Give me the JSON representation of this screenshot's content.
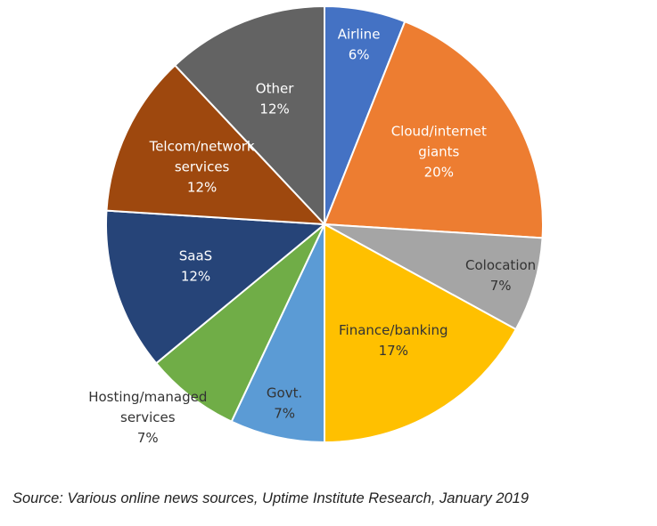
{
  "chart_data": {
    "type": "pie",
    "title": "",
    "slices": [
      {
        "lines": [
          "Airline",
          "6%"
        ],
        "value": 6,
        "color": "#4472c4",
        "label_color": "#ffffff",
        "label_outside": false
      },
      {
        "lines": [
          "Cloud/internet",
          "giants",
          "20%"
        ],
        "value": 20,
        "color": "#ed7d31",
        "label_color": "#ffffff",
        "label_outside": false
      },
      {
        "lines": [
          "Colocation",
          "7%"
        ],
        "value": 7,
        "color": "#a5a5a5",
        "label_color": "#333333",
        "label_outside": false
      },
      {
        "lines": [
          "Finance/banking",
          "17%"
        ],
        "value": 17,
        "color": "#ffc000",
        "label_color": "#333333",
        "label_outside": false
      },
      {
        "lines": [
          "Govt.",
          "7%"
        ],
        "value": 7,
        "color": "#5b9bd5",
        "label_color": "#333333",
        "label_outside": false
      },
      {
        "lines": [
          "Hosting/managed",
          "services",
          "7%"
        ],
        "value": 7,
        "color": "#70ad47",
        "label_color": "#333333",
        "label_outside": true
      },
      {
        "lines": [
          "SaaS",
          "12%"
        ],
        "value": 12,
        "color": "#264478",
        "label_color": "#ffffff",
        "label_outside": false
      },
      {
        "lines": [
          "Telcom/network",
          "services",
          "12%"
        ],
        "value": 12,
        "color": "#9e480e",
        "label_color": "#ffffff",
        "label_outside": false
      },
      {
        "lines": [
          "Other",
          "12%"
        ],
        "value": 12,
        "color": "#636363",
        "label_color": "#ffffff",
        "label_outside": false
      }
    ]
  },
  "source": "Source: Various online news sources, Uptime Institute Research, January 2019"
}
